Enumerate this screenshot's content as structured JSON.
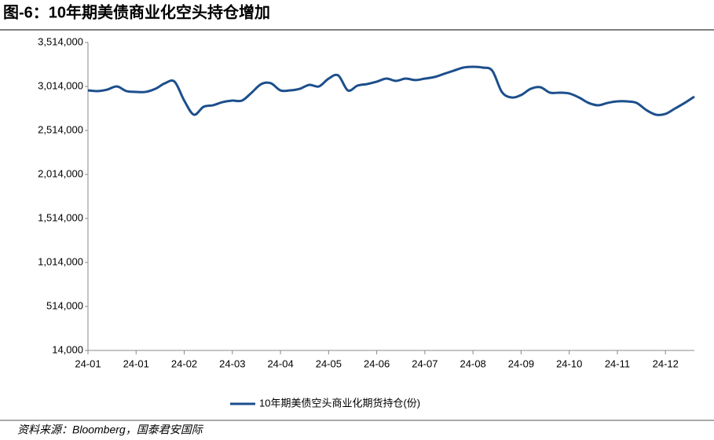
{
  "chart_data": {
    "type": "line",
    "title": "图-6：10年期美债商业化空头持仓增加",
    "source": "资料来源：Bloomberg，国泰君安国际",
    "categories": [
      "24-01",
      null,
      null,
      null,
      null,
      "24-01",
      null,
      null,
      null,
      null,
      "24-02",
      null,
      null,
      null,
      null,
      "24-03",
      null,
      null,
      null,
      null,
      "24-04",
      null,
      null,
      null,
      null,
      "24-05",
      null,
      null,
      null,
      null,
      "24-06",
      null,
      null,
      null,
      null,
      "24-07",
      null,
      null,
      null,
      null,
      "24-08",
      null,
      null,
      null,
      null,
      "24-09",
      null,
      null,
      null,
      null,
      "24-10",
      null,
      null,
      null,
      null,
      "24-11",
      null,
      null,
      null,
      null,
      "24-12",
      null,
      null,
      null
    ],
    "series": [
      {
        "name": "10年期美债空头商业化期货持仓(份)",
        "color": "#1c4f8c",
        "values": [
          2969000,
          2961000,
          2978000,
          3014000,
          2961000,
          2952000,
          2952000,
          2987000,
          3050000,
          3068000,
          2853000,
          2693000,
          2782000,
          2800000,
          2836000,
          2853000,
          2853000,
          2943000,
          3041000,
          3050000,
          2969000,
          2969000,
          2987000,
          3032000,
          3014000,
          3103000,
          3139000,
          2969000,
          3023000,
          3041000,
          3068000,
          3103000,
          3077000,
          3103000,
          3086000,
          3103000,
          3121000,
          3157000,
          3193000,
          3228000,
          3237000,
          3228000,
          3193000,
          2952000,
          2889000,
          2916000,
          2987000,
          3005000,
          2943000,
          2943000,
          2934000,
          2889000,
          2827000,
          2800000,
          2827000,
          2844000,
          2844000,
          2827000,
          2746000,
          2693000,
          2702000,
          2764000,
          2827000,
          2898000
        ]
      }
    ],
    "ylim": [
      14000,
      3514000
    ],
    "yticks": [
      {
        "value": 14000,
        "label": "14,000"
      },
      {
        "value": 514000,
        "label": "514,000"
      },
      {
        "value": 1014000,
        "label": "1,014,000"
      },
      {
        "value": 1514000,
        "label": "1,514,000"
      },
      {
        "value": 2014000,
        "label": "2,014,000"
      },
      {
        "value": 2514000,
        "label": "2,514,000"
      },
      {
        "value": 3014000,
        "label": "3,014,000"
      },
      {
        "value": 3514000,
        "label": "3,514,000"
      }
    ],
    "grid": false,
    "legend": "bottom"
  }
}
